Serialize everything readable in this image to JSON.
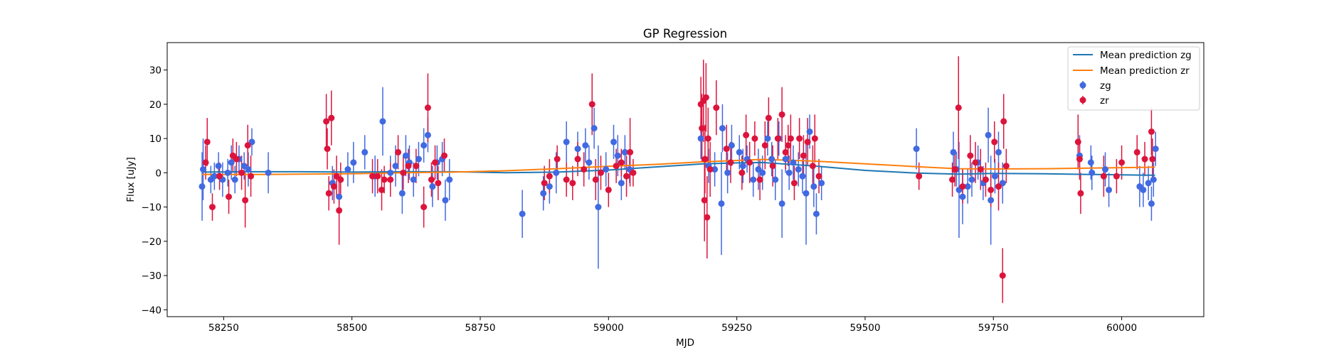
{
  "chart_data": {
    "type": "scatter",
    "title": "GP Regression",
    "xlabel": "MJD",
    "ylabel": "Flux [uJy]",
    "xlim": [
      58140,
      60160
    ],
    "ylim": [
      -42,
      38
    ],
    "x_ticks": [
      58250,
      58500,
      58750,
      59000,
      59250,
      59500,
      59750,
      60000
    ],
    "y_ticks": [
      -40,
      -30,
      -20,
      -10,
      0,
      10,
      20,
      30
    ],
    "legend_position": "top-right",
    "colors": {
      "zg_points": "#4169e1",
      "zr_points": "#dc143c",
      "zg_line": "#1f77b4",
      "zr_line": "#ff7f0e"
    },
    "mean_prediction_zg": {
      "name": "Mean prediction zg",
      "x": [
        58208,
        58300,
        58400,
        58500,
        58600,
        58700,
        58800,
        58900,
        59000,
        59100,
        59185,
        59250,
        59300,
        59400,
        59500,
        59600,
        59680,
        59750,
        59850,
        59950,
        60050,
        60065
      ],
      "y": [
        0.2,
        0.3,
        0.3,
        0.2,
        0.3,
        0.3,
        0.0,
        0.2,
        0.8,
        1.8,
        2.6,
        2.9,
        3.0,
        2.0,
        0.7,
        -0.1,
        -0.4,
        -0.2,
        -0.3,
        -0.5,
        -0.7,
        -0.7
      ]
    },
    "mean_prediction_zr": {
      "name": "Mean prediction zr",
      "x": [
        58208,
        58300,
        58400,
        58500,
        58600,
        58700,
        58800,
        58900,
        59000,
        59100,
        59185,
        59250,
        59300,
        59400,
        59500,
        59600,
        59680,
        59750,
        59850,
        59950,
        60050,
        60065
      ],
      "y": [
        -0.5,
        -0.5,
        -0.4,
        -0.3,
        0.0,
        0.2,
        0.6,
        1.2,
        1.9,
        2.5,
        3.2,
        3.6,
        3.9,
        3.4,
        2.6,
        1.8,
        1.2,
        1.1,
        1.2,
        1.4,
        1.6,
        1.7
      ]
    },
    "series": [
      {
        "name": "zg",
        "points": [
          [
            58208,
            -4,
            10
          ],
          [
            58210,
            1,
            9
          ],
          [
            58225,
            -2,
            4
          ],
          [
            58232,
            -1,
            4
          ],
          [
            58240,
            2,
            4
          ],
          [
            58248,
            -2,
            5
          ],
          [
            58258,
            0,
            4
          ],
          [
            58265,
            3,
            5
          ],
          [
            58272,
            -2,
            4
          ],
          [
            58280,
            4,
            4
          ],
          [
            58290,
            2,
            4
          ],
          [
            58298,
            1,
            5
          ],
          [
            58305,
            9,
            4
          ],
          [
            58337,
            0,
            6
          ],
          [
            58462,
            -3,
            5
          ],
          [
            58475,
            -7,
            5
          ],
          [
            58492,
            1,
            5
          ],
          [
            58503,
            3,
            6
          ],
          [
            58525,
            6,
            5
          ],
          [
            58545,
            -1,
            6
          ],
          [
            58560,
            15,
            10
          ],
          [
            58575,
            0,
            5
          ],
          [
            58585,
            2,
            6
          ],
          [
            58598,
            -6,
            6
          ],
          [
            58605,
            5,
            6
          ],
          [
            58612,
            3,
            5
          ],
          [
            58620,
            -2,
            5
          ],
          [
            58630,
            4,
            5
          ],
          [
            58640,
            8,
            5
          ],
          [
            58648,
            11,
            5
          ],
          [
            58657,
            -4,
            6
          ],
          [
            58666,
            3,
            5
          ],
          [
            58676,
            4,
            5
          ],
          [
            58682,
            -8,
            6
          ],
          [
            58690,
            -2,
            6
          ],
          [
            58832,
            -12,
            7
          ],
          [
            58873,
            -6,
            5
          ],
          [
            58885,
            -4,
            5
          ],
          [
            58898,
            0,
            6
          ],
          [
            58918,
            9,
            6
          ],
          [
            58940,
            7,
            5
          ],
          [
            58955,
            8,
            5
          ],
          [
            58962,
            3,
            5
          ],
          [
            58972,
            13,
            6
          ],
          [
            58980,
            -10,
            18
          ],
          [
            58995,
            1,
            5
          ],
          [
            59010,
            9,
            5
          ],
          [
            59018,
            5,
            6
          ],
          [
            59025,
            -3,
            5
          ],
          [
            59032,
            6,
            5
          ],
          [
            59041,
            1,
            4
          ],
          [
            59180,
            10,
            6
          ],
          [
            59195,
            2,
            5
          ],
          [
            59207,
            1,
            5
          ],
          [
            59220,
            -9,
            15
          ],
          [
            59222,
            13,
            7
          ],
          [
            59232,
            0,
            6
          ],
          [
            59240,
            8,
            6
          ],
          [
            59255,
            6,
            5
          ],
          [
            59262,
            2,
            5
          ],
          [
            59270,
            4,
            4
          ],
          [
            59282,
            -2,
            5
          ],
          [
            59292,
            1,
            6
          ],
          [
            59300,
            0,
            5
          ],
          [
            59310,
            10,
            5
          ],
          [
            59318,
            4,
            5
          ],
          [
            59325,
            -2,
            6
          ],
          [
            59332,
            10,
            5
          ],
          [
            59338,
            -9,
            10
          ],
          [
            59345,
            4,
            4
          ],
          [
            59352,
            0,
            5
          ],
          [
            59360,
            3,
            5
          ],
          [
            59370,
            1,
            5
          ],
          [
            59378,
            -1,
            5
          ],
          [
            59385,
            -6,
            15
          ],
          [
            59392,
            12,
            5
          ],
          [
            59400,
            -4,
            6
          ],
          [
            59405,
            -12,
            6
          ],
          [
            59415,
            -3,
            5
          ],
          [
            59600,
            7,
            6
          ],
          [
            59672,
            6,
            6
          ],
          [
            59678,
            1,
            5
          ],
          [
            59683,
            -5,
            14
          ],
          [
            59690,
            -7,
            8
          ],
          [
            59700,
            -4,
            5
          ],
          [
            59708,
            -2,
            5
          ],
          [
            59720,
            3,
            5
          ],
          [
            59730,
            -3,
            5
          ],
          [
            59740,
            11,
            8
          ],
          [
            59745,
            -8,
            13
          ],
          [
            59753,
            -1,
            5
          ],
          [
            59760,
            6,
            6
          ],
          [
            59768,
            -3,
            6
          ],
          [
            59918,
            5,
            6
          ],
          [
            59940,
            3,
            5
          ],
          [
            59942,
            0,
            5
          ],
          [
            59968,
            1,
            5
          ],
          [
            59975,
            -5,
            5
          ],
          [
            60035,
            -4,
            6
          ],
          [
            60042,
            -5,
            5
          ],
          [
            60052,
            -3,
            5
          ],
          [
            60058,
            -9,
            5
          ],
          [
            60062,
            -2,
            5
          ],
          [
            60066,
            7,
            5
          ]
        ]
      },
      {
        "name": "zr",
        "points": [
          [
            58215,
            3,
            5
          ],
          [
            58218,
            9,
            7
          ],
          [
            58228,
            -10,
            4
          ],
          [
            58242,
            -1,
            4
          ],
          [
            58260,
            -7,
            5
          ],
          [
            58268,
            5,
            5
          ],
          [
            58275,
            4,
            5
          ],
          [
            58285,
            0,
            5
          ],
          [
            58292,
            -8,
            8
          ],
          [
            58297,
            8,
            6
          ],
          [
            58303,
            -1,
            6
          ],
          [
            58450,
            15,
            8
          ],
          [
            58452,
            7,
            6
          ],
          [
            58455,
            -6,
            5
          ],
          [
            58460,
            16,
            8
          ],
          [
            58465,
            -4,
            5
          ],
          [
            58470,
            -1,
            6
          ],
          [
            58475,
            -11,
            10
          ],
          [
            58478,
            -2,
            5
          ],
          [
            58540,
            -1,
            5
          ],
          [
            58550,
            -1,
            5
          ],
          [
            58558,
            -5,
            6
          ],
          [
            58563,
            -2,
            4
          ],
          [
            58575,
            -2,
            5
          ],
          [
            58590,
            6,
            5
          ],
          [
            58600,
            0,
            5
          ],
          [
            58610,
            2,
            5
          ],
          [
            58625,
            2,
            5
          ],
          [
            58640,
            -10,
            6
          ],
          [
            58648,
            19,
            10
          ],
          [
            58655,
            -2,
            5
          ],
          [
            58662,
            3,
            5
          ],
          [
            58668,
            -3,
            5
          ],
          [
            58680,
            5,
            5
          ],
          [
            58875,
            -3,
            5
          ],
          [
            58885,
            -1,
            5
          ],
          [
            58900,
            4,
            4
          ],
          [
            58918,
            -2,
            5
          ],
          [
            58930,
            -3,
            5
          ],
          [
            58940,
            4,
            5
          ],
          [
            58952,
            1,
            5
          ],
          [
            58968,
            20,
            9
          ],
          [
            58975,
            -2,
            6
          ],
          [
            58985,
            0,
            5
          ],
          [
            59000,
            -5,
            5
          ],
          [
            59015,
            2,
            5
          ],
          [
            59025,
            3,
            4
          ],
          [
            59035,
            -1,
            6
          ],
          [
            59042,
            6,
            10
          ],
          [
            59048,
            0,
            4
          ],
          [
            59180,
            20,
            8
          ],
          [
            59182,
            13,
            10
          ],
          [
            59185,
            21,
            12
          ],
          [
            59187,
            -8,
            12
          ],
          [
            59188,
            4,
            10
          ],
          [
            59190,
            22,
            10
          ],
          [
            59192,
            -13,
            12
          ],
          [
            59194,
            10,
            9
          ],
          [
            59198,
            1,
            8
          ],
          [
            59210,
            19,
            8
          ],
          [
            59230,
            7,
            7
          ],
          [
            59238,
            3,
            6
          ],
          [
            59260,
            0,
            5
          ],
          [
            59268,
            11,
            6
          ],
          [
            59275,
            3,
            6
          ],
          [
            59285,
            10,
            5
          ],
          [
            59295,
            -2,
            6
          ],
          [
            59305,
            8,
            7
          ],
          [
            59312,
            16,
            6
          ],
          [
            59320,
            2,
            6
          ],
          [
            59330,
            10,
            6
          ],
          [
            59338,
            17,
            8
          ],
          [
            59345,
            6,
            5
          ],
          [
            59350,
            8,
            6
          ],
          [
            59355,
            10,
            7
          ],
          [
            59362,
            -3,
            5
          ],
          [
            59372,
            10,
            6
          ],
          [
            59380,
            5,
            6
          ],
          [
            59388,
            9,
            7
          ],
          [
            59398,
            2,
            6
          ],
          [
            59402,
            10,
            7
          ],
          [
            59410,
            -1,
            5
          ],
          [
            59605,
            -1,
            4
          ],
          [
            59670,
            -2,
            5
          ],
          [
            59675,
            1,
            5
          ],
          [
            59682,
            19,
            15
          ],
          [
            59690,
            -4,
            5
          ],
          [
            59705,
            5,
            6
          ],
          [
            59715,
            3,
            6
          ],
          [
            59725,
            1,
            6
          ],
          [
            59735,
            -2,
            5
          ],
          [
            59745,
            -5,
            5
          ],
          [
            59752,
            9,
            6
          ],
          [
            59760,
            -4,
            7
          ],
          [
            59768,
            -30,
            8
          ],
          [
            59770,
            15,
            8
          ],
          [
            59775,
            2,
            5
          ],
          [
            59915,
            9,
            8
          ],
          [
            59918,
            4,
            6
          ],
          [
            59920,
            -6,
            6
          ],
          [
            59965,
            -1,
            6
          ],
          [
            59990,
            -1,
            5
          ],
          [
            60000,
            3,
            5
          ],
          [
            60030,
            6,
            5
          ],
          [
            60045,
            4,
            5
          ],
          [
            60058,
            12,
            7
          ],
          [
            60060,
            4,
            6
          ]
        ]
      }
    ]
  }
}
